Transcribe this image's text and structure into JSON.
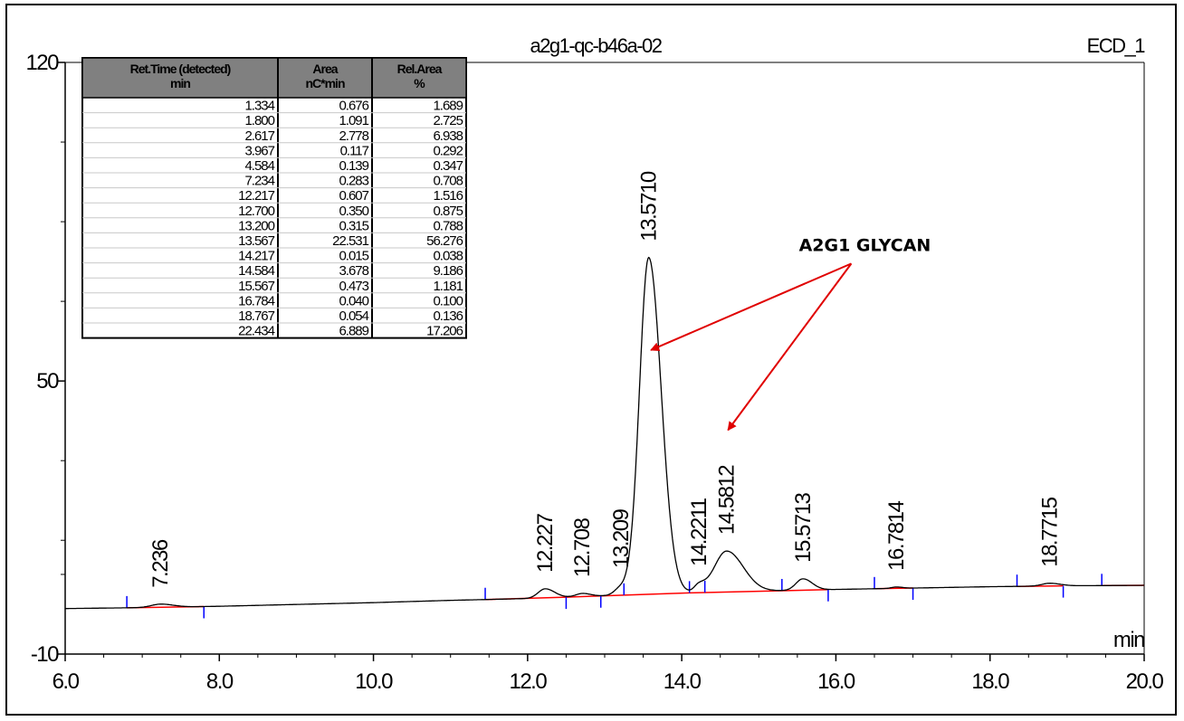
{
  "chart_data": {
    "type": "line",
    "title": "a2g1-qc-b46a-02",
    "channel": "ECD_1",
    "xlabel": "min",
    "ylabel": "",
    "xlim": [
      6.0,
      20.0
    ],
    "ylim": [
      -10,
      120
    ],
    "x_ticks": [
      "6.0",
      "8.0",
      "10.0",
      "12.0",
      "14.0",
      "16.0",
      "18.0",
      "20.0"
    ],
    "y_ticks": [
      "120",
      "50",
      "-10"
    ],
    "y_minor_ticks": [
      102.5,
      85,
      67.5,
      32.5,
      15,
      7.5
    ],
    "grid": false,
    "series": [
      {
        "baseline": [
          [
            6.0,
            0.0
          ],
          [
            7.0,
            0.2
          ],
          [
            8.0,
            0.5
          ],
          [
            9.0,
            0.9
          ],
          [
            10.0,
            1.3
          ],
          [
            11.0,
            1.8
          ],
          [
            12.0,
            2.2
          ],
          [
            13.0,
            2.8
          ],
          [
            14.0,
            3.4
          ],
          [
            15.0,
            3.8
          ],
          [
            16.0,
            4.2
          ],
          [
            17.0,
            4.5
          ],
          [
            18.0,
            4.8
          ],
          [
            19.0,
            5.0
          ],
          [
            20.0,
            5.1
          ]
        ],
        "peaks": [
          {
            "rt": 7.236,
            "height": 0.7,
            "width": 0.12
          },
          {
            "rt": 12.227,
            "height": 2.0,
            "width": 0.09
          },
          {
            "rt": 12.708,
            "height": 0.7,
            "width": 0.08
          },
          {
            "rt": 13.209,
            "height": 1.6,
            "width": 0.08
          },
          {
            "rt": 13.571,
            "height": 74.0,
            "width": 0.12
          },
          {
            "rt": 14.2211,
            "height": 1.5,
            "width": 0.06
          },
          {
            "rt": 14.5812,
            "height": 9.0,
            "width": 0.16
          },
          {
            "rt": 15.5713,
            "height": 2.5,
            "width": 0.09
          },
          {
            "rt": 16.7814,
            "height": 0.3,
            "width": 0.06
          },
          {
            "rt": 18.7715,
            "height": 0.6,
            "width": 0.1
          }
        ]
      }
    ],
    "integration_lines": [
      [
        6.8,
        7.8
      ],
      [
        11.45,
        12.5
      ],
      [
        12.5,
        12.95
      ],
      [
        12.95,
        13.25
      ],
      [
        13.25,
        14.1
      ],
      [
        14.1,
        14.3
      ],
      [
        14.3,
        15.3
      ],
      [
        15.3,
        15.9
      ],
      [
        16.5,
        17.0
      ],
      [
        18.35,
        18.95
      ],
      [
        19.45,
        20.0
      ]
    ],
    "integration_ticks_up": [
      6.8,
      11.45,
      13.25,
      14.1,
      14.3,
      15.3,
      16.5,
      18.35,
      19.45
    ],
    "integration_ticks_down": [
      7.8,
      12.5,
      12.95,
      15.9,
      17.0,
      18.95
    ],
    "peak_labels": [
      "7.236",
      "12.227",
      "12.708",
      "13.209",
      "13.5710",
      "14.2211",
      "14.5812",
      "15.5713",
      "16.7814",
      "18.7715"
    ],
    "peak_label_rts": [
      7.236,
      12.227,
      12.708,
      13.209,
      13.571,
      14.2211,
      14.5812,
      15.5713,
      16.7814,
      18.7715
    ],
    "annotation": {
      "text": "A2G1 GLYCAN",
      "arrow_targets": [
        [
          13.6,
          56.8
        ],
        [
          14.6,
          39.2
        ]
      ],
      "arrow_origin": [
        16.2,
        75.8
      ]
    },
    "table": {
      "headers": [
        [
          "Ret.Time (detected)",
          "min"
        ],
        [
          "Area",
          "nC*min"
        ],
        [
          "Rel.Area",
          "%"
        ]
      ],
      "rows": [
        [
          "1.334",
          "0.676",
          "1.689"
        ],
        [
          "1.800",
          "1.091",
          "2.725"
        ],
        [
          "2.617",
          "2.778",
          "6.938"
        ],
        [
          "3.967",
          "0.117",
          "0.292"
        ],
        [
          "4.584",
          "0.139",
          "0.347"
        ],
        [
          "7.234",
          "0.283",
          "0.708"
        ],
        [
          "12.217",
          "0.607",
          "1.516"
        ],
        [
          "12.700",
          "0.350",
          "0.875"
        ],
        [
          "13.200",
          "0.315",
          "0.788"
        ],
        [
          "13.567",
          "22.531",
          "56.276"
        ],
        [
          "14.217",
          "0.015",
          "0.038"
        ],
        [
          "14.584",
          "3.678",
          "9.186"
        ],
        [
          "15.567",
          "0.473",
          "1.181"
        ],
        [
          "16.784",
          "0.040",
          "0.100"
        ],
        [
          "18.767",
          "0.054",
          "0.136"
        ],
        [
          "22.434",
          "6.889",
          "17.206"
        ]
      ]
    }
  },
  "colors": {
    "trace": "#000000",
    "baseline": "#ff0000",
    "integration_tick": "#0000ff",
    "annotation_arrow": "#e00000",
    "table_header_bg": "#808080"
  }
}
